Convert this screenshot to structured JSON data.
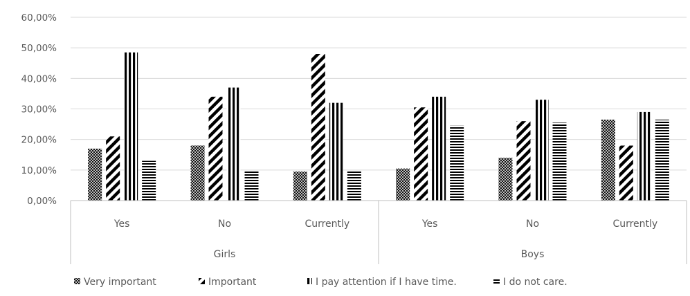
{
  "chart_data": {
    "type": "bar",
    "title": "",
    "xlabel": "",
    "ylabel": "",
    "ylim": [
      0,
      0.6
    ],
    "y_ticks": [
      "0,00%",
      "10,00%",
      "20,00%",
      "30,00%",
      "40,00%",
      "50,00%",
      "60,00%"
    ],
    "y_tick_values": [
      0,
      0.1,
      0.2,
      0.3,
      0.4,
      0.5,
      0.6
    ],
    "grid": true,
    "legend_position": "bottom",
    "groups": [
      {
        "label": "Girls",
        "categories": [
          "Yes",
          "No",
          "Currently"
        ]
      },
      {
        "label": "Boys",
        "categories": [
          "Yes",
          "No",
          "Currently"
        ]
      }
    ],
    "series": [
      {
        "name": "Very important",
        "pattern": "crosshatch",
        "values": [
          0.17,
          0.18,
          0.095,
          0.105,
          0.14,
          0.265
        ]
      },
      {
        "name": "Important",
        "pattern": "diagonal",
        "values": [
          0.21,
          0.34,
          0.48,
          0.305,
          0.26,
          0.18
        ]
      },
      {
        "name": "I pay attention if I have time.",
        "pattern": "vertical",
        "values": [
          0.485,
          0.37,
          0.32,
          0.34,
          0.33,
          0.29
        ]
      },
      {
        "name": "I do not care.",
        "pattern": "horizontal",
        "values": [
          0.13,
          0.095,
          0.095,
          0.245,
          0.255,
          0.265
        ]
      }
    ]
  }
}
